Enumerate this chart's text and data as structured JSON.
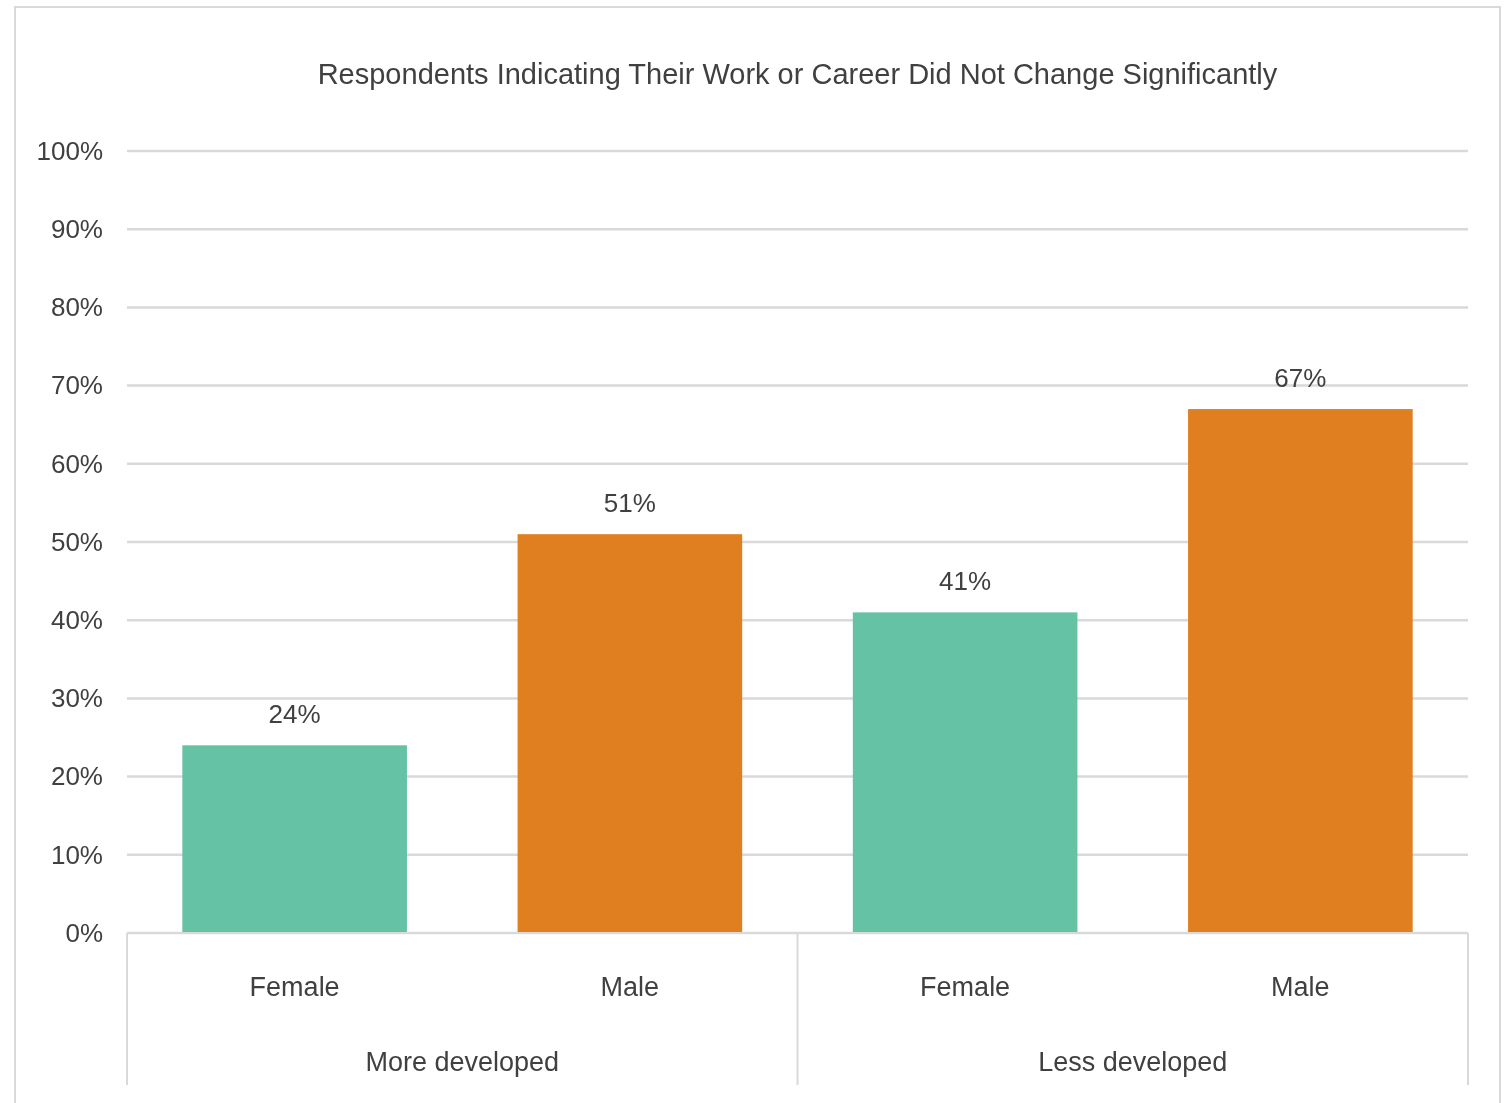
{
  "chart_data": {
    "type": "bar",
    "title": "Respondents Indicating Their Work or Career Did Not Change Significantly",
    "categories": [
      "Female",
      "Male",
      "Female",
      "Male"
    ],
    "values": [
      24,
      51,
      41,
      67
    ],
    "colors": [
      "#66c2a5",
      "#e07f1f",
      "#66c2a5",
      "#e07f1f"
    ],
    "value_labels": [
      "24%",
      "51%",
      "41%",
      "67%"
    ],
    "annotations": [
      "More developed",
      "Less developed"
    ],
    "ylim": [
      0,
      100
    ],
    "yticks": [
      {
        "value": 0,
        "label": "0%"
      },
      {
        "value": 10,
        "label": "10%"
      },
      {
        "value": 20,
        "label": "20%"
      },
      {
        "value": 30,
        "label": "30%"
      },
      {
        "value": 40,
        "label": "40%"
      },
      {
        "value": 50,
        "label": "50%"
      },
      {
        "value": 60,
        "label": "60%"
      },
      {
        "value": 70,
        "label": "70%"
      },
      {
        "value": 80,
        "label": "80%"
      },
      {
        "value": 90,
        "label": "90%"
      },
      {
        "value": 100,
        "label": "100%"
      }
    ],
    "grid": "y"
  }
}
